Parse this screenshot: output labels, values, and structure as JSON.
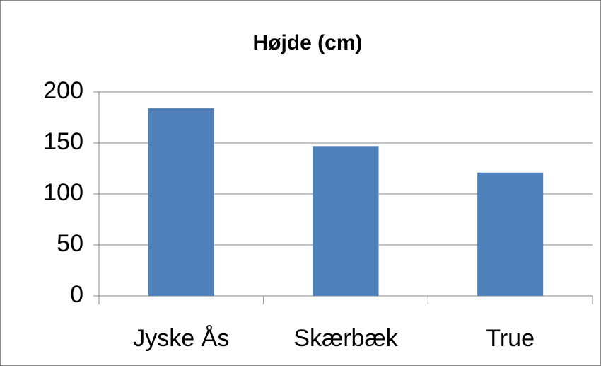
{
  "chart_data": {
    "type": "bar",
    "title": "Højde (cm)",
    "categories": [
      "Jyske Ås",
      "Skærbæk",
      "True"
    ],
    "values": [
      184,
      147,
      121
    ],
    "color": "#4f81bd",
    "ylim": [
      0,
      200
    ],
    "yticks": [
      0,
      50,
      100,
      150,
      200
    ],
    "grid": true
  }
}
